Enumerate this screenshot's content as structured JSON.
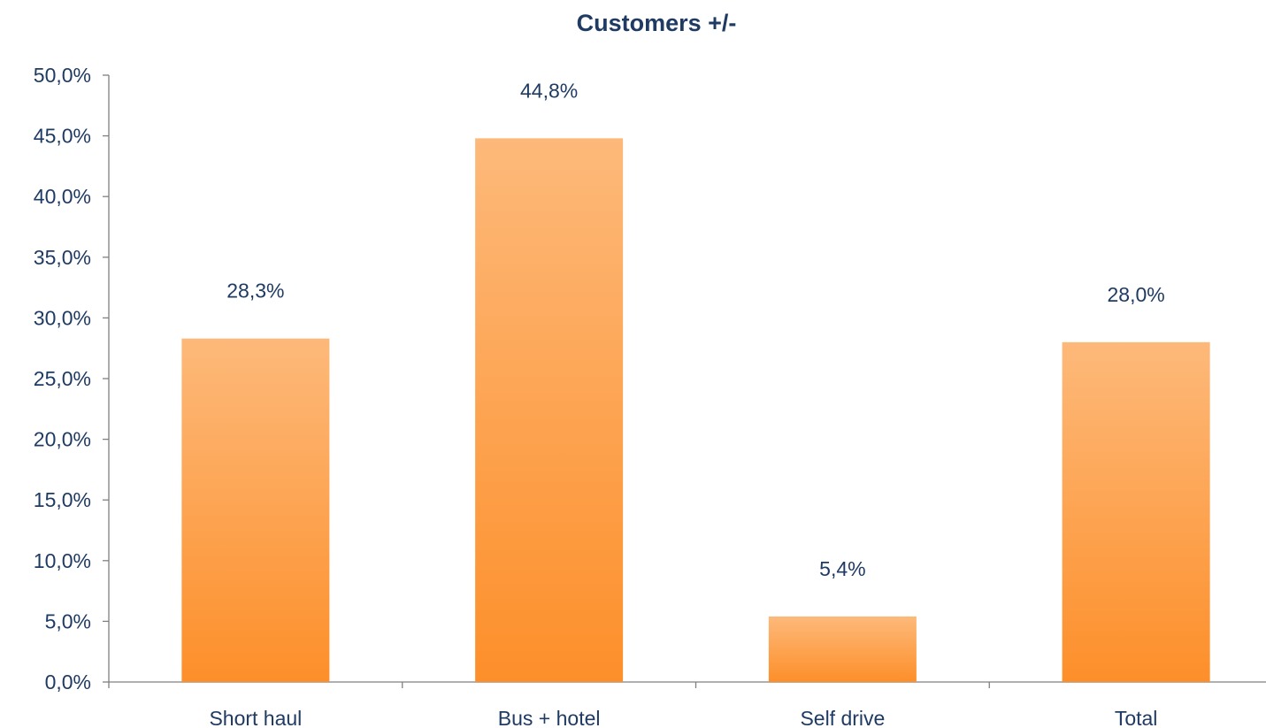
{
  "chart_data": {
    "type": "bar",
    "title": "Customers +/-",
    "categories": [
      "Short haul",
      "Bus + hotel",
      "Self drive",
      "Total"
    ],
    "values": [
      28.3,
      44.8,
      5.4,
      28.0
    ],
    "data_labels": [
      "28,3%",
      "44,8%",
      "5,4%",
      "28,0%"
    ],
    "ylim": [
      0,
      50
    ],
    "ytick_values": [
      0,
      5,
      10,
      15,
      20,
      25,
      30,
      35,
      40,
      45,
      50
    ],
    "ytick_labels": [
      "0,0%",
      "5,0%",
      "10,0%",
      "15,0%",
      "20,0%",
      "25,0%",
      "30,0%",
      "35,0%",
      "40,0%",
      "45,0%",
      "50,0%"
    ],
    "xlabel": "",
    "ylabel": "",
    "grid": false,
    "legend": "none",
    "colors": {
      "bar_top": "#FDB97A",
      "bar_bottom": "#FD8F2A",
      "text": "#1F3B63",
      "axis": "#808080"
    }
  }
}
